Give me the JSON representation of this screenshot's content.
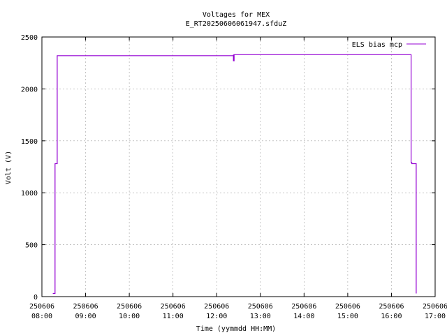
{
  "chart_data": {
    "type": "line",
    "title": "Voltages for MEX",
    "subtitle": "E_RT20250606061947.sfduZ",
    "xlabel": "Time (yymmdd HH:MM)",
    "ylabel": "Volt (V)",
    "xlim": [
      "250606 08:00",
      "250606 17:00"
    ],
    "ylim": [
      0,
      2500
    ],
    "grid": true,
    "legend_position": "top-right",
    "x_ticks": [
      {
        "date": "250606",
        "time": "08:00"
      },
      {
        "date": "250606",
        "time": "09:00"
      },
      {
        "date": "250606",
        "time": "10:00"
      },
      {
        "date": "250606",
        "time": "11:00"
      },
      {
        "date": "250606",
        "time": "12:00"
      },
      {
        "date": "250606",
        "time": "13:00"
      },
      {
        "date": "250606",
        "time": "14:00"
      },
      {
        "date": "250606",
        "time": "15:00"
      },
      {
        "date": "250606",
        "time": "16:00"
      },
      {
        "date": "250606",
        "time": "17:00"
      }
    ],
    "y_ticks": [
      "0",
      "500",
      "1000",
      "1500",
      "2000",
      "2500"
    ],
    "series": [
      {
        "name": "ELS bias mcp",
        "color": "#9400d3",
        "x": [
          "250606 08:15",
          "250606 08:18",
          "250606 08:18",
          "250606 08:20",
          "250606 08:21",
          "250606 12:00",
          "250606 12:23",
          "250606 12:23",
          "250606 12:24",
          "250606 16:25",
          "250606 16:27",
          "250606 16:28",
          "250606 16:33",
          "250606 16:34"
        ],
        "y": [
          30,
          30,
          1280,
          1280,
          2320,
          2320,
          2330,
          2270,
          2330,
          2330,
          1290,
          1280,
          1280,
          30
        ]
      }
    ]
  }
}
